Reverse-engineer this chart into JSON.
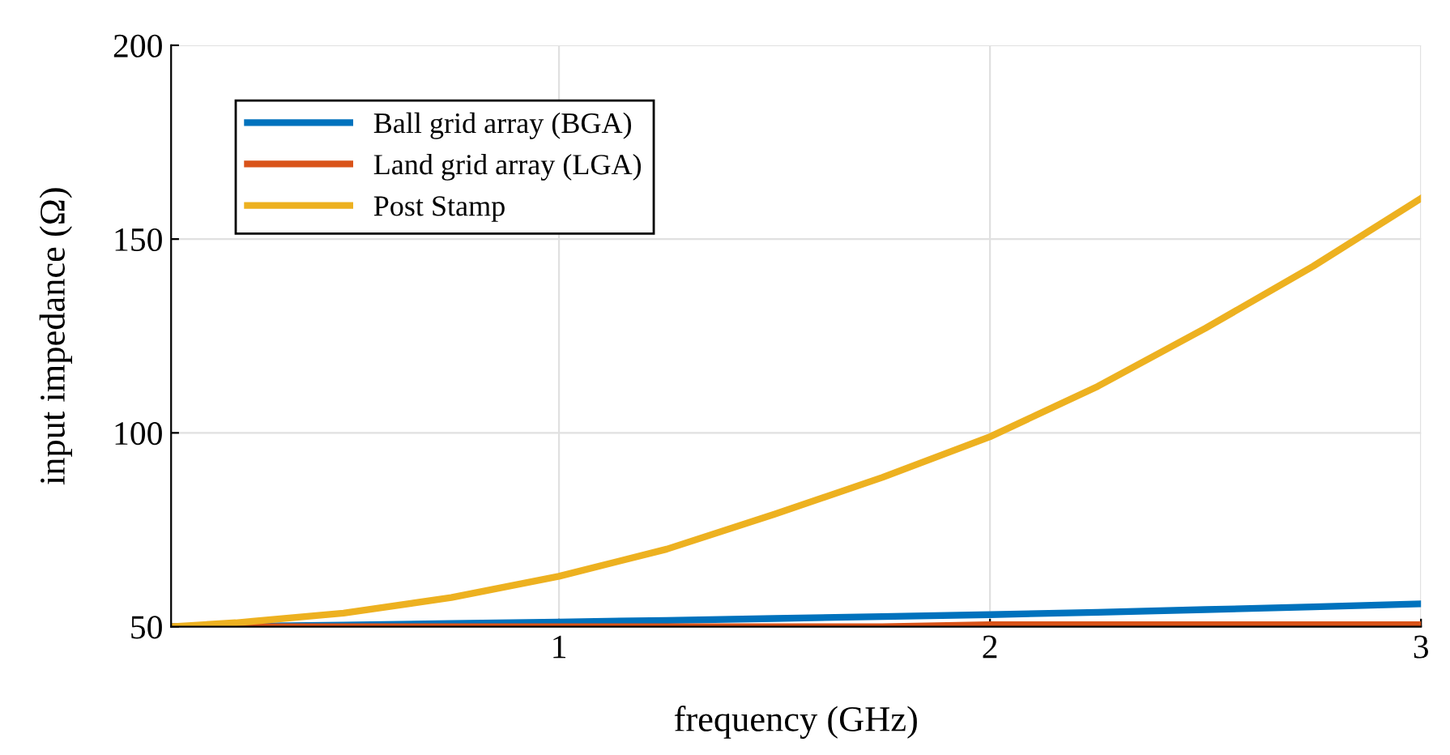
{
  "chart_data": {
    "type": "line",
    "xlabel": "frequency (GHz)",
    "ylabel": "input impedance (Ω)",
    "xlim": [
      0.1,
      3
    ],
    "xticks": [
      1,
      2,
      3
    ],
    "ylim": [
      50,
      200
    ],
    "yticks": [
      50,
      100,
      150,
      200
    ],
    "grid": true,
    "legend": "top left",
    "marker": "none",
    "line_style": "solid",
    "x": [
      0.1,
      0.25,
      0.5,
      0.75,
      1,
      1.25,
      1.5,
      1.75,
      2,
      2.25,
      2.5,
      2.75,
      3
    ],
    "series": [
      {
        "name": "Ball grid array (BGA)",
        "color": "#0072bd",
        "values": [
          50,
          50.1,
          50.4,
          50.8,
          51.2,
          51.6,
          52.1,
          52.6,
          53.1,
          53.7,
          54.4,
          55.1,
          55.9
        ]
      },
      {
        "name": "Land grid array (LGA)",
        "color": "#d95319",
        "values": [
          50,
          50,
          50,
          50,
          50,
          50,
          50,
          50,
          50.5,
          50.5,
          50.5,
          50.5,
          50.5
        ]
      },
      {
        "name": "Post Stamp",
        "color": "#edb120",
        "values": [
          50,
          51,
          53.5,
          57.5,
          63,
          70,
          79,
          88.5,
          99,
          112,
          127,
          143,
          160.5
        ]
      }
    ]
  }
}
